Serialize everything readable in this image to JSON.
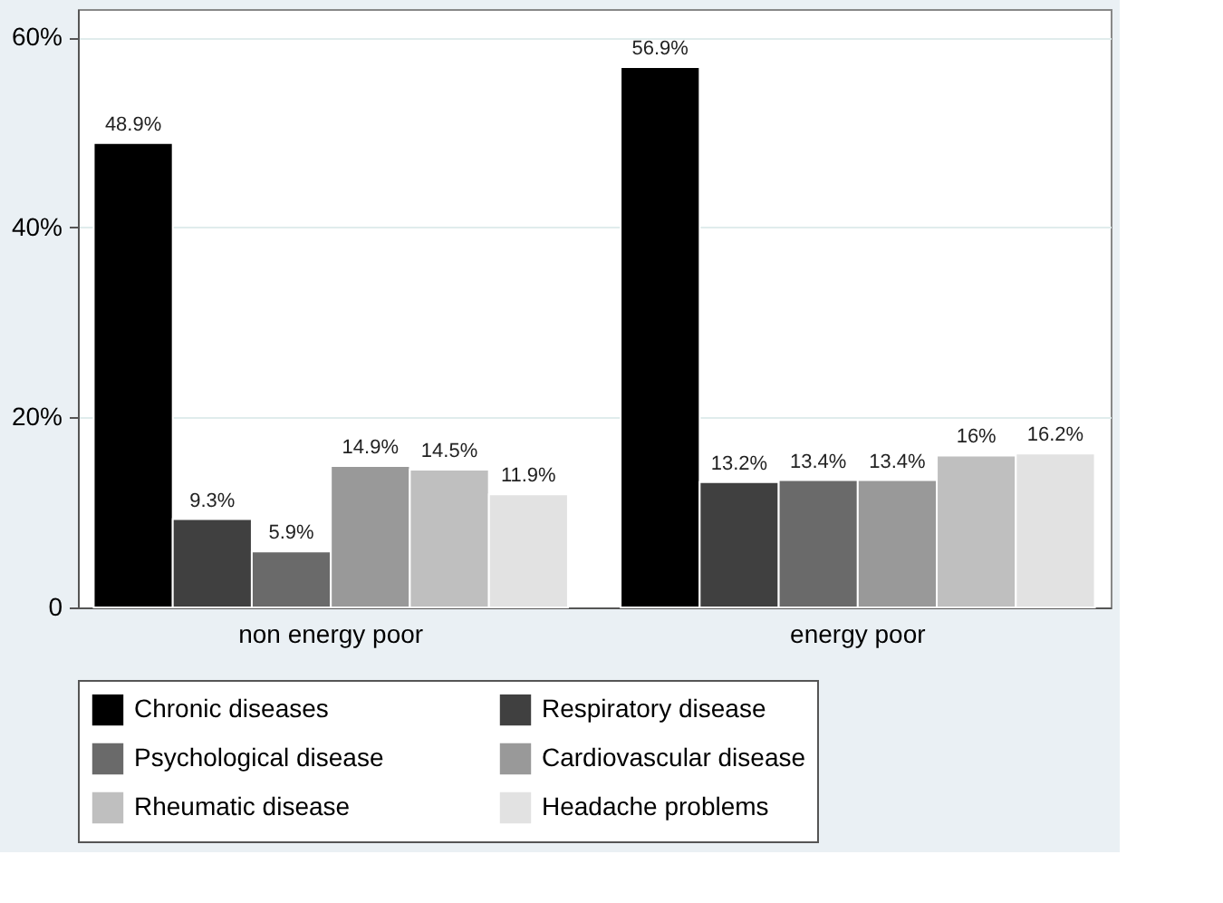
{
  "chart_data": {
    "type": "bar",
    "categories": [
      "non energy poor",
      "energy poor"
    ],
    "series": [
      {
        "name": "Chronic diseases",
        "color": "#000000",
        "values": [
          48.9,
          56.9
        ],
        "value_labels": [
          "48.9%",
          "56.9%"
        ]
      },
      {
        "name": "Respiratory disease",
        "color": "#404040",
        "values": [
          9.3,
          13.2
        ],
        "value_labels": [
          "9.3%",
          "13.2%"
        ]
      },
      {
        "name": "Psychological disease",
        "color": "#6a6a6a",
        "values": [
          5.9,
          13.4
        ],
        "value_labels": [
          "5.9%",
          "13.4%"
        ]
      },
      {
        "name": "Cardiovascular disease",
        "color": "#999999",
        "values": [
          14.9,
          13.4
        ],
        "value_labels": [
          "14.9%",
          "13.4%"
        ]
      },
      {
        "name": "Rheumatic disease",
        "color": "#bfbfbf",
        "values": [
          14.5,
          16
        ],
        "value_labels": [
          "14.5%",
          "16%"
        ]
      },
      {
        "name": "Headache problems",
        "color": "#e2e2e2",
        "values": [
          11.9,
          16.2
        ],
        "value_labels": [
          "11.9%",
          "16.2%"
        ]
      }
    ],
    "ylim": [
      0,
      63
    ],
    "yticks": [
      0,
      {
        "value": 20,
        "label": "20%"
      },
      {
        "value": 40,
        "label": "40%"
      },
      {
        "value": 60,
        "label": "60%"
      }
    ],
    "grid": "y",
    "legend": "bottom"
  }
}
